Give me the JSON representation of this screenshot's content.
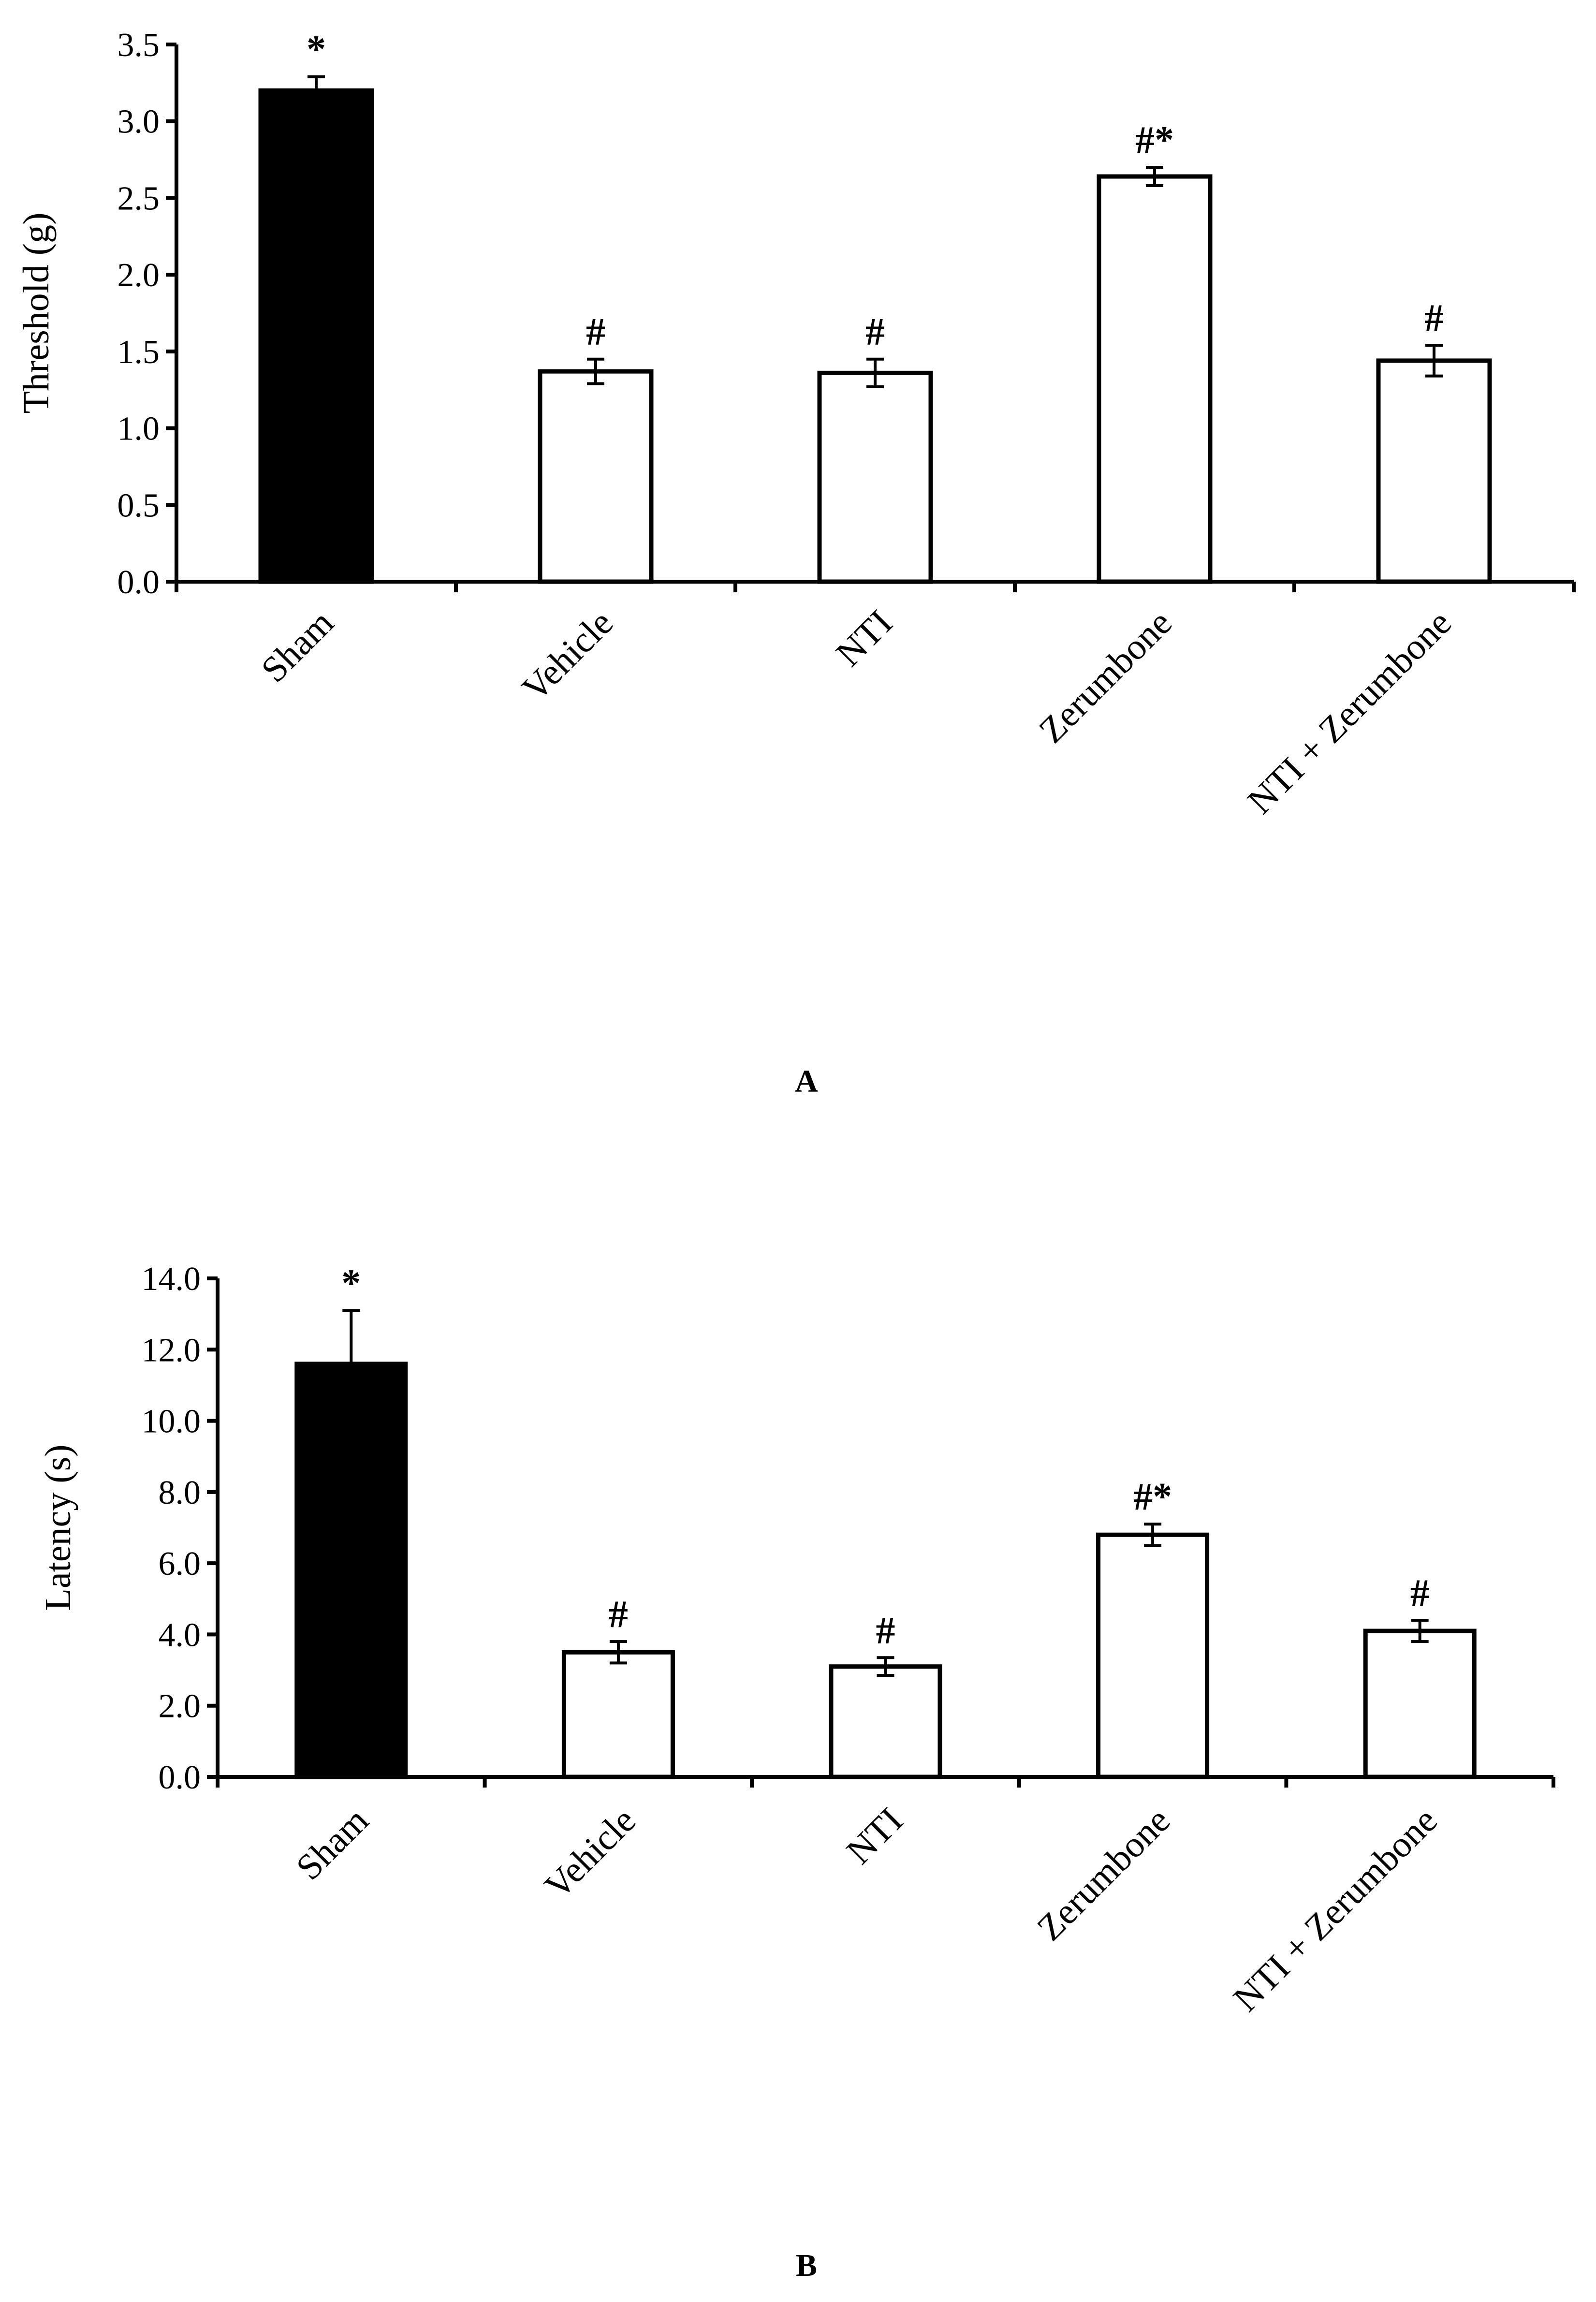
{
  "chart_data": [
    {
      "type": "bar",
      "panel_label": "A",
      "categories": [
        "Sham",
        "Vehicle",
        "NTI",
        "Zerumbone",
        "NTI + Zerumbone"
      ],
      "values": [
        3.2,
        1.37,
        1.36,
        2.64,
        1.44
      ],
      "errors": [
        0.09,
        0.08,
        0.09,
        0.06,
        0.1
      ],
      "bar_colors": [
        "#000000",
        "#ffffff",
        "#ffffff",
        "#ffffff",
        "#ffffff"
      ],
      "significance": [
        "*",
        "#",
        "#",
        "#*",
        "#"
      ],
      "title": "",
      "xlabel": "",
      "ylabel": "Threshold (g)",
      "ylim": [
        0,
        3.5
      ],
      "yticks": [
        "0.0",
        "0.5",
        "1.0",
        "1.5",
        "2.0",
        "2.5",
        "3.0",
        "3.5"
      ],
      "grid": false,
      "legend": "none"
    },
    {
      "type": "bar",
      "panel_label": "B",
      "categories": [
        "Sham",
        "Vehicle",
        "NTI",
        "Zerumbone",
        "NTI + Zerumbone"
      ],
      "values": [
        11.6,
        3.5,
        3.1,
        6.8,
        4.1
      ],
      "errors": [
        1.5,
        0.3,
        0.25,
        0.3,
        0.3
      ],
      "bar_colors": [
        "#000000",
        "#ffffff",
        "#ffffff",
        "#ffffff",
        "#ffffff"
      ],
      "significance": [
        "*",
        "#",
        "#",
        "#*",
        "#"
      ],
      "title": "",
      "xlabel": "",
      "ylabel": "Latency (s)",
      "ylim": [
        0,
        14
      ],
      "yticks": [
        "0.0",
        "2.0",
        "4.0",
        "6.0",
        "8.0",
        "10.0",
        "12.0",
        "14.0"
      ],
      "grid": false,
      "legend": "none"
    }
  ]
}
